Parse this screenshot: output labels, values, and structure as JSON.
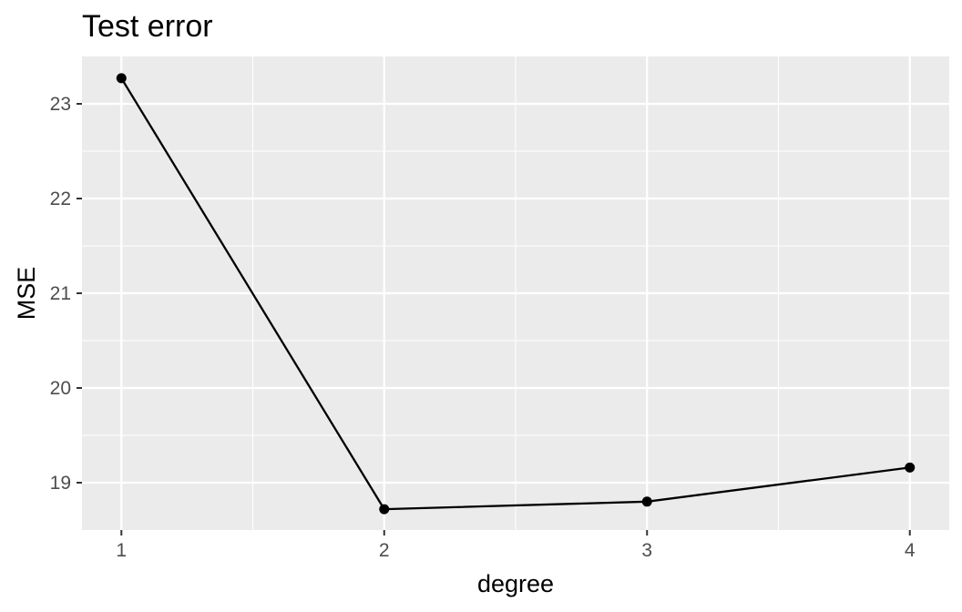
{
  "chart_data": {
    "type": "line",
    "title": "Test error",
    "xlabel": "degree",
    "ylabel": "MSE",
    "x": [
      1,
      2,
      3,
      4
    ],
    "series": [
      {
        "values": [
          23.27,
          18.72,
          18.8,
          19.16
        ]
      }
    ],
    "xlim": [
      0.85,
      4.15
    ],
    "ylim": [
      18.5,
      23.5
    ],
    "x_ticks": [
      "1",
      "2",
      "3",
      "4"
    ],
    "y_ticks": [
      "19",
      "20",
      "21",
      "22",
      "23"
    ],
    "grid": true,
    "legend": "none",
    "markers": true,
    "colors": {
      "panel": "#ebebeb",
      "grid": "#ffffff",
      "line": "#000000",
      "tick_text": "#4d4d4d",
      "tick_mark": "#333333"
    }
  }
}
